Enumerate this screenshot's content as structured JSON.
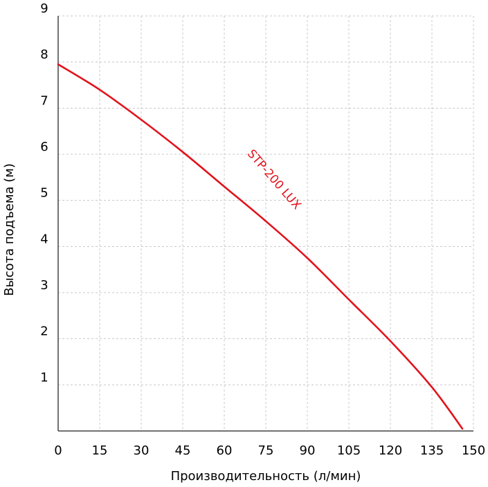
{
  "chart_data": {
    "type": "line",
    "xlabel": "Производительность (л/мин)",
    "ylabel": "Высота подъема (м)",
    "xlim": [
      0,
      150
    ],
    "ylim": [
      0,
      9
    ],
    "x_ticks": [
      "0",
      "15",
      "30",
      "45",
      "60",
      "75",
      "90",
      "105",
      "120",
      "135",
      "150"
    ],
    "y_ticks": [
      "1",
      "2",
      "3",
      "4",
      "5",
      "6",
      "7",
      "8",
      "9"
    ],
    "grid": true,
    "series": [
      {
        "name": "STP-200 LUX",
        "color": "#e1131c",
        "x": [
          0,
          15,
          30,
          45,
          60,
          75,
          90,
          105,
          120,
          135,
          146
        ],
        "y": [
          7.95,
          7.4,
          6.75,
          6.05,
          5.3,
          4.55,
          3.75,
          2.85,
          1.95,
          0.95,
          0.05
        ]
      }
    ]
  }
}
